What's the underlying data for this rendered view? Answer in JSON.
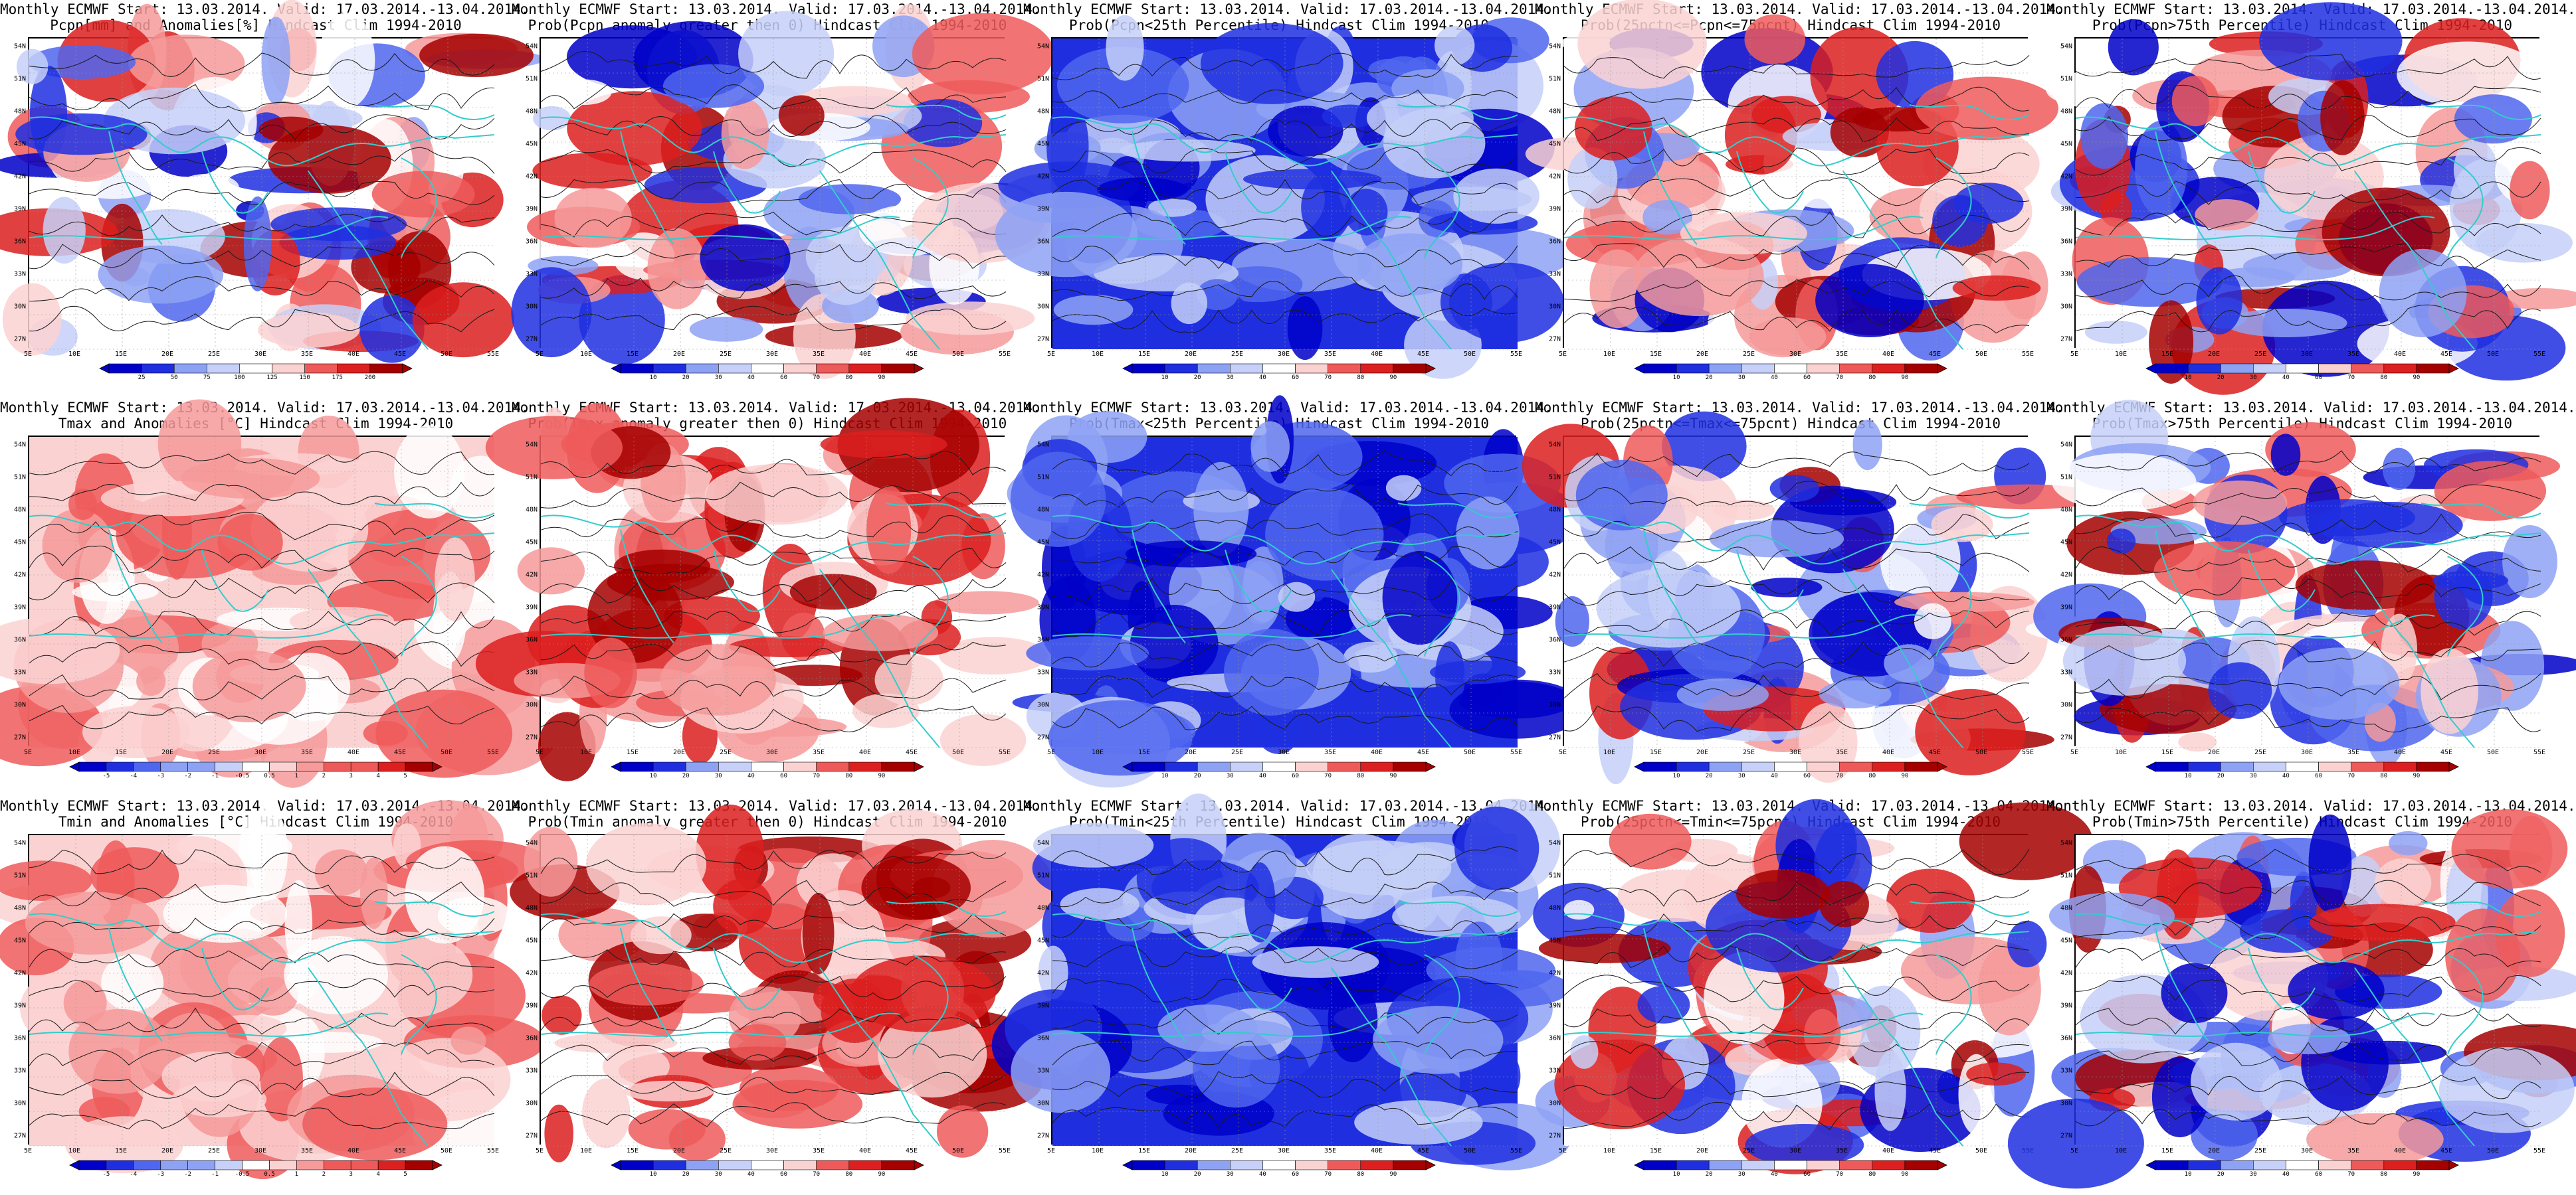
{
  "panels": [
    {
      "id": "p1",
      "row": 0,
      "col": 0,
      "title1": "Monthly ECMWF Start: 13.03.2014. Valid: 17.03.2014.-13.04.2014.",
      "title2": "Pcpn[mm] and Anomalies[%] Hindcast Clim 1994-2010",
      "scale": "anom",
      "colorbar": [
        "25",
        "50",
        "75",
        "100",
        "125",
        "150",
        "175",
        "200"
      ],
      "seed": 11
    },
    {
      "id": "p2",
      "row": 0,
      "col": 1,
      "title1": "Monthly ECMWF Start: 13.03.2014. Valid: 17.03.2014.-13.04.2014.",
      "title2": "Prob(Pcpn anomaly greater then 0) Hindcast Clim 1994-2010",
      "scale": "prob",
      "colorbar": [
        "10",
        "20",
        "30",
        "40",
        "60",
        "70",
        "80",
        "90"
      ],
      "seed": 23
    },
    {
      "id": "p3",
      "row": 0,
      "col": 2,
      "title1": "Monthly ECMWF Start: 13.03.2014. Valid: 17.03.2014.-13.04.2014.",
      "title2": "Prob(Pcpn<25th Percentile) Hindcast Clim 1994-2010",
      "scale": "prob",
      "colorbar": [
        "10",
        "20",
        "30",
        "40",
        "60",
        "70",
        "80",
        "90"
      ],
      "seed": 37
    },
    {
      "id": "p4",
      "row": 0,
      "col": 3,
      "title1": "Monthly ECMWF Start: 13.03.2014. Valid: 17.03.2014.-13.04.2014.",
      "title2": "Prob(25pctn<=Pcpn<=75pcnt) Hindcast Clim 1994-2010",
      "scale": "prob",
      "colorbar": [
        "10",
        "20",
        "30",
        "40",
        "60",
        "70",
        "80",
        "90"
      ],
      "seed": 41
    },
    {
      "id": "p5",
      "row": 0,
      "col": 4,
      "title1": "Monthly ECMWF Start: 13.03.2014. Valid: 17.03.2014.-13.04.2014.",
      "title2": "Prob(Pcpn>75th Percentile) Hindcast Clim 1994-2010",
      "scale": "prob",
      "colorbar": [
        "10",
        "20",
        "30",
        "40",
        "60",
        "70",
        "80",
        "90"
      ],
      "seed": 53
    },
    {
      "id": "p6",
      "row": 1,
      "col": 0,
      "title1": "Monthly ECMWF Start: 13.03.2014. Valid: 17.03.2014.-13.04.2014.",
      "title2": "Tmax and Anomalies [°C] Hindcast Clim 1994-2010",
      "scale": "temp",
      "colorbar": [
        "-5",
        "-4",
        "-3",
        "-2",
        "-1",
        "-0.5",
        "0.5",
        "1",
        "2",
        "3",
        "4",
        "5"
      ],
      "seed": 61
    },
    {
      "id": "p7",
      "row": 1,
      "col": 1,
      "title1": "Monthly ECMWF Start: 13.03.2014. Valid: 17.03.2014.-13.04.2014.",
      "title2": "Prob(Tmax anomaly greater then 0) Hindcast Clim 1994-2010",
      "scale": "prob",
      "colorbar": [
        "10",
        "20",
        "30",
        "40",
        "60",
        "70",
        "80",
        "90"
      ],
      "seed": 71
    },
    {
      "id": "p8",
      "row": 1,
      "col": 2,
      "title1": "Monthly ECMWF Start: 13.03.2014. Valid: 17.03.2014.-13.04.2014.",
      "title2": "Prob(Tmax<25th Percentile) Hindcast Clim 1994-2010",
      "scale": "prob",
      "colorbar": [
        "10",
        "20",
        "30",
        "40",
        "60",
        "70",
        "80",
        "90"
      ],
      "seed": 83
    },
    {
      "id": "p9",
      "row": 1,
      "col": 3,
      "title1": "Monthly ECMWF Start: 13.03.2014. Valid: 17.03.2014.-13.04.2014.",
      "title2": "Prob(25pctn<=Tmax<=75pcnt) Hindcast Clim 1994-2010",
      "scale": "prob",
      "colorbar": [
        "10",
        "20",
        "30",
        "40",
        "60",
        "70",
        "80",
        "90"
      ],
      "seed": 97
    },
    {
      "id": "p10",
      "row": 1,
      "col": 4,
      "title1": "Monthly ECMWF Start: 13.03.2014. Valid: 17.03.2014.-13.04.2014.",
      "title2": "Prob(Tmax>75th Percentile) Hindcast Clim 1994-2010",
      "scale": "prob",
      "colorbar": [
        "10",
        "20",
        "30",
        "40",
        "60",
        "70",
        "80",
        "90"
      ],
      "seed": 101
    },
    {
      "id": "p11",
      "row": 2,
      "col": 0,
      "title1": "Monthly ECMWF Start: 13.03.2014. Valid: 17.03.2014.-13.04.2014.",
      "title2": "Tmin and Anomalies [°C] Hindcast Clim 1994-2010",
      "scale": "temp",
      "colorbar": [
        "-5",
        "-4",
        "-3",
        "-2",
        "-1",
        "-0.5",
        "0.5",
        "1",
        "2",
        "3",
        "4",
        "5"
      ],
      "seed": 113
    },
    {
      "id": "p12",
      "row": 2,
      "col": 1,
      "title1": "Monthly ECMWF Start: 13.03.2014. Valid: 17.03.2014.-13.04.2014.",
      "title2": "Prob(Tmin anomaly greater then 0) Hindcast Clim 1994-2010",
      "scale": "prob",
      "colorbar": [
        "10",
        "20",
        "30",
        "40",
        "60",
        "70",
        "80",
        "90"
      ],
      "seed": 127
    },
    {
      "id": "p13",
      "row": 2,
      "col": 2,
      "title1": "Monthly ECMWF Start: 13.03.2014. Valid: 17.03.2014.-13.04.2014.",
      "title2": "Prob(Tmin<25th Percentile) Hindcast Clim 1994-2010",
      "scale": "prob",
      "colorbar": [
        "10",
        "20",
        "30",
        "40",
        "60",
        "70",
        "80",
        "90"
      ],
      "seed": 131
    },
    {
      "id": "p14",
      "row": 2,
      "col": 3,
      "title1": "Monthly ECMWF Start: 13.03.2014. Valid: 17.03.2014.-13.04.2014.",
      "title2": "Prob(25pctn<=Tmin<=75pcnt) Hindcast Clim 1994-2010",
      "scale": "prob",
      "colorbar": [
        "10",
        "20",
        "30",
        "40",
        "60",
        "70",
        "80",
        "90"
      ],
      "seed": 139
    },
    {
      "id": "p15",
      "row": 2,
      "col": 4,
      "title1": "Monthly ECMWF Start: 13.03.2014. Valid: 17.03.2014.-13.04.2014.",
      "title2": "Prob(Tmin>75th Percentile) Hindcast Clim 1994-2010",
      "scale": "prob",
      "colorbar": [
        "10",
        "20",
        "30",
        "40",
        "60",
        "70",
        "80",
        "90"
      ],
      "seed": 149
    }
  ],
  "lat_labels": [
    "54N",
    "51N",
    "48N",
    "45N",
    "42N",
    "39N",
    "36N",
    "33N",
    "30N",
    "27N"
  ],
  "lon_labels": [
    "5E",
    "10E",
    "15E",
    "20E",
    "25E",
    "30E",
    "35E",
    "40E",
    "45E",
    "50E",
    "55E"
  ],
  "colors": {
    "prob": [
      "#0000c8",
      "#1f2fe0",
      "#4f66ee",
      "#8ea2f4",
      "#c6d0f8",
      "#ffffff",
      "#fbd2d2",
      "#f69a9a",
      "#ee5a5a",
      "#dc1f1f",
      "#a50000"
    ],
    "coast": "#33cccc",
    "contour": "#1a1a1a"
  }
}
